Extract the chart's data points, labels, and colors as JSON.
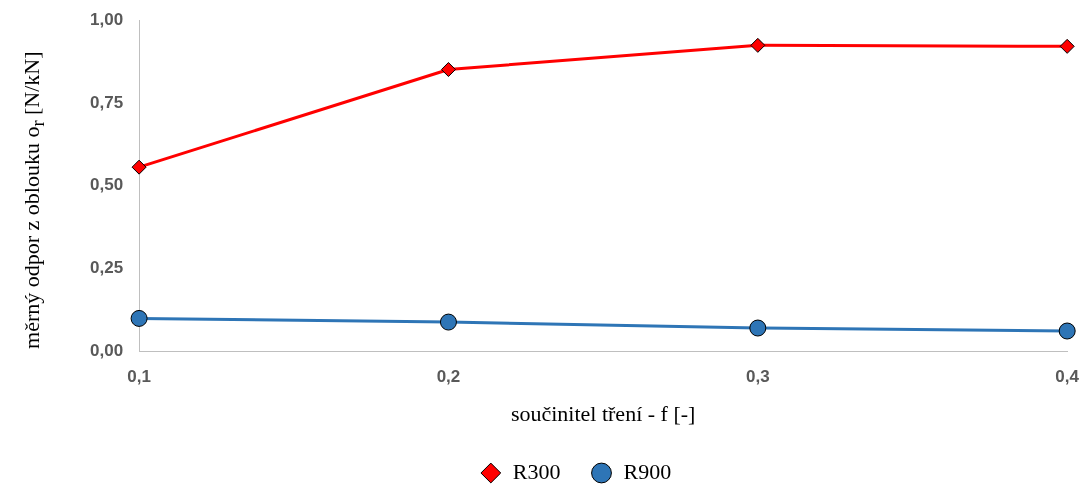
{
  "chart_data": {
    "type": "line",
    "xlabel": "součinitel tření - f [-]",
    "ylabel": "měrný odpor z oblouku o$_{r}$ [N/kN]",
    "x": [
      0.1,
      0.2,
      0.3,
      0.4
    ],
    "xlim": [
      0.1,
      0.4
    ],
    "xticks": [
      {
        "value": 0.1,
        "label": "0,1"
      },
      {
        "value": 0.2,
        "label": "0,2"
      },
      {
        "value": 0.3,
        "label": "0,3"
      },
      {
        "value": 0.4,
        "label": "0,4"
      }
    ],
    "ylim": [
      0,
      1
    ],
    "yticks": [
      {
        "value": 0,
        "label": "0,00"
      },
      {
        "value": 0.25,
        "label": "0,25"
      },
      {
        "value": 0.5,
        "label": "0,50"
      },
      {
        "value": 0.75,
        "label": "0,75"
      },
      {
        "value": 1,
        "label": "1,00"
      }
    ],
    "series": [
      {
        "name": "R300",
        "color": "#ff0000",
        "marker": "diamond",
        "values": [
          0.556,
          0.851,
          0.924,
          0.921
        ]
      },
      {
        "name": "R900",
        "color": "#2e75b6",
        "marker": "circle",
        "values": [
          0.099,
          0.088,
          0.07,
          0.061
        ]
      }
    ],
    "grid": false,
    "legend": "bottom",
    "line_style": "solid"
  }
}
